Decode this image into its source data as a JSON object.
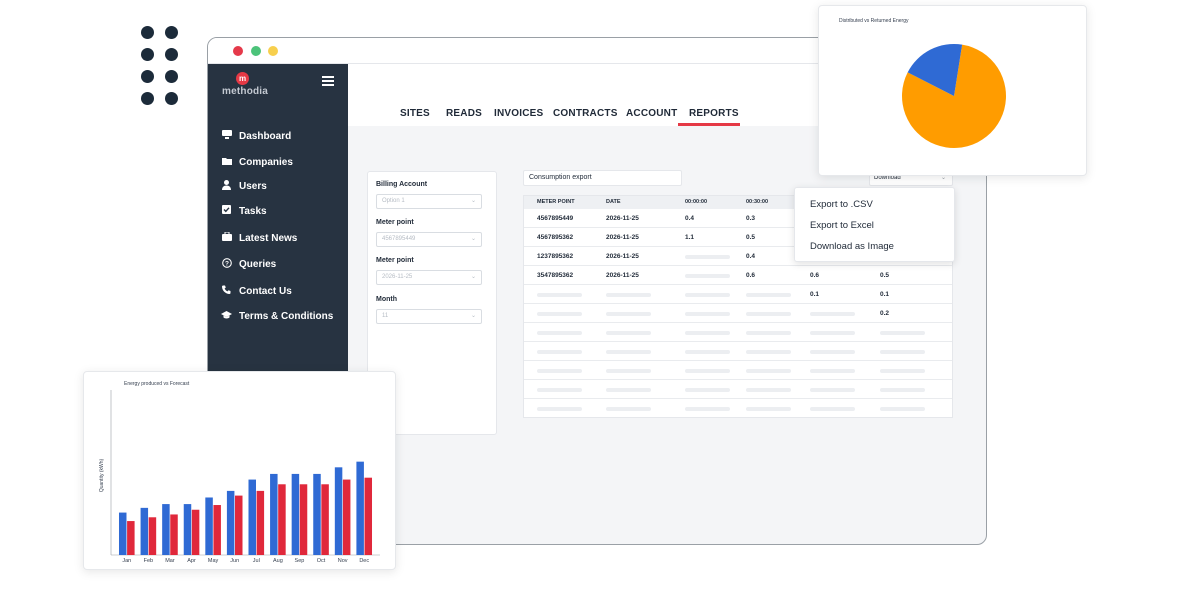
{
  "app": {
    "logo_mark": "m",
    "logo_text": "methodia"
  },
  "sidebar": {
    "items": [
      {
        "label": "Dashboard",
        "icon": "dashboard-icon"
      },
      {
        "label": "Companies",
        "icon": "folder-icon"
      },
      {
        "label": "Users",
        "icon": "user-icon"
      },
      {
        "label": "Tasks",
        "icon": "checkbox-icon"
      },
      {
        "label": "Latest News",
        "icon": "briefcase-icon"
      },
      {
        "label": "Queries",
        "icon": "question-icon"
      },
      {
        "label": "Contact Us",
        "icon": "phone-icon"
      },
      {
        "label": "Terms & Conditions",
        "icon": "graduation-cap-icon"
      }
    ]
  },
  "tabs": [
    {
      "label": "SITES"
    },
    {
      "label": "READS"
    },
    {
      "label": "INVOICES"
    },
    {
      "label": "CONTRACTS"
    },
    {
      "label": "ACCOUNT"
    },
    {
      "label": "REPORTS",
      "active": true
    }
  ],
  "filters": {
    "billing_account": {
      "label": "Billing Account",
      "value": "Option 1"
    },
    "meter_point": {
      "label": "Meter point",
      "value": "4567895449"
    },
    "meter_point_date": {
      "label": "Meter point",
      "value": "2026-11-25"
    },
    "month": {
      "label": "Month",
      "value": "11"
    }
  },
  "report": {
    "export_name": "Consumption export",
    "download_label": "Download",
    "columns": [
      "METER POINT",
      "DATE",
      "00:00:00",
      "00:30:00"
    ],
    "rows": [
      {
        "meter": "4567895449",
        "date": "2026-11-25",
        "v1": "0.4",
        "v2": "0.3",
        "v3": "",
        "v4": ""
      },
      {
        "meter": "4567895362",
        "date": "2026-11-25",
        "v1": "1.1",
        "v2": "0.5",
        "v3": "",
        "v4": ""
      },
      {
        "meter": "1237895362",
        "date": "2026-11-25",
        "v1": "",
        "v2": "0.4",
        "v3": "",
        "v4": ""
      },
      {
        "meter": "3547895362",
        "date": "2026-11-25",
        "v1": "",
        "v2": "0.6",
        "v3": "0.6",
        "v4": "0.5"
      },
      {
        "meter": "",
        "date": "",
        "v1": "",
        "v2": "",
        "v3": "0.1",
        "v4": "0.1"
      },
      {
        "meter": "",
        "date": "",
        "v1": "",
        "v2": "",
        "v3": "",
        "v4": "0.2"
      }
    ]
  },
  "download_menu": {
    "items": [
      "Export to .CSV",
      "Export to Excel",
      "Download as Image"
    ]
  },
  "pie_chart": {
    "title": "Distributed vs Returned Energy",
    "colors": {
      "primary": "#ff9c00",
      "secondary": "#2f6ad4"
    }
  },
  "colors": {
    "sidebar": "#273341",
    "accent": "#e53945",
    "series_a": "#2f6ad4",
    "series_b": "#e0283b"
  },
  "chart_data": [
    {
      "type": "pie",
      "title": "Distributed vs Returned Energy",
      "values": [
        80,
        20
      ],
      "colors": [
        "#ff9c00",
        "#2f6ad4"
      ]
    },
    {
      "type": "bar",
      "title": "Energy produced vs Forecast",
      "ylabel": "Quantity (kWh)",
      "xlabel": "",
      "categories": [
        "Jan",
        "Feb",
        "Mar",
        "Apr",
        "May",
        "Jun",
        "Jul",
        "Aug",
        "Sep",
        "Oct",
        "Nov",
        "Dec"
      ],
      "series": [
        {
          "values": [
            45,
            50,
            54,
            54,
            61,
            68,
            80,
            86,
            86,
            86,
            93,
            99
          ]
        },
        {
          "values": [
            36,
            40,
            43,
            48,
            53,
            63,
            68,
            75,
            75,
            75,
            80,
            82
          ]
        }
      ],
      "ylim": [
        0,
        175
      ],
      "grid": false,
      "colors": [
        "#2f6ad4",
        "#e0283b"
      ]
    }
  ]
}
